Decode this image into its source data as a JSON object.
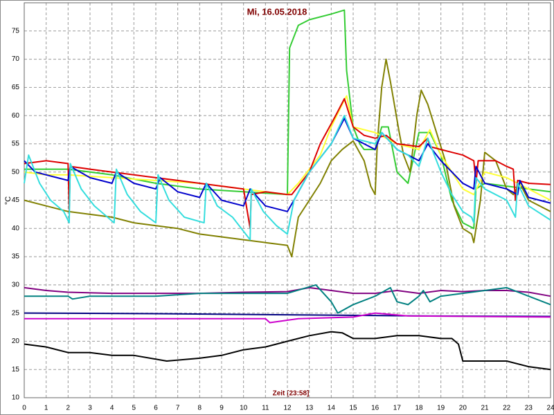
{
  "chart_data": {
    "type": "line",
    "title": "Mi, 16.05.2018",
    "x_label": "Zeit [23:58]",
    "y_label": "°C",
    "xlim": [
      0,
      24
    ],
    "xticks": [
      0,
      1,
      2,
      3,
      4,
      5,
      6,
      7,
      8,
      9,
      10,
      11,
      12,
      13,
      14,
      15,
      16,
      17,
      18,
      19,
      20,
      21,
      22,
      23,
      24
    ],
    "ylim": [
      10,
      80
    ],
    "yticks": [
      10,
      15,
      20,
      25,
      30,
      35,
      40,
      45,
      50,
      55,
      60,
      65,
      70,
      75
    ],
    "grid": true,
    "series": [
      {
        "color": "#33cc33",
        "x": [
          0,
          2,
          4,
          6,
          8,
          10,
          12,
          12.1,
          12.5,
          13,
          14,
          14.6,
          14.7,
          15,
          15.3,
          15.5,
          16,
          16.3,
          16.6,
          17,
          17.5,
          18,
          18.5,
          19,
          19.5,
          20,
          20.5,
          20.6,
          21,
          22,
          23,
          24
        ],
        "values": [
          50.5,
          50.5,
          49.5,
          48,
          47,
          46.5,
          46,
          72,
          76,
          77,
          78,
          78.7,
          68,
          58,
          55,
          54,
          54,
          58,
          58,
          50,
          48,
          57,
          57,
          53,
          45,
          41,
          40,
          47,
          48,
          47.5,
          47,
          46.5
        ]
      },
      {
        "color": "#808000",
        "x": [
          0,
          1,
          2,
          3,
          4,
          5,
          6,
          7,
          8,
          9,
          10,
          11,
          12,
          12.2,
          12.5,
          13,
          13.5,
          14,
          14.5,
          15,
          15.5,
          15.8,
          16,
          16.1,
          16.3,
          16.5,
          16.7,
          17.1,
          17.3,
          17.6,
          17.9,
          18.1,
          18.4,
          18.8,
          19.2,
          19.6,
          20,
          20.4,
          20.5,
          20.8,
          21,
          21.5,
          22,
          22.3,
          22.6,
          23,
          24
        ],
        "values": [
          45,
          44,
          43,
          42.5,
          42,
          41,
          40.5,
          40,
          39,
          38.5,
          38,
          37.5,
          37,
          35,
          42,
          45,
          48,
          52,
          54,
          55.5,
          52,
          47.5,
          46,
          55,
          65,
          70,
          66,
          57,
          53,
          50,
          60,
          64.5,
          62,
          57,
          52,
          44,
          40,
          39,
          37.5,
          45,
          53.5,
          52,
          47,
          46,
          48,
          45,
          43
        ]
      },
      {
        "color": "#ffff33",
        "x": [
          0,
          1,
          2,
          4,
          6,
          8,
          10,
          12,
          12.5,
          13.5,
          14,
          14.5,
          14.7,
          15,
          16,
          16.5,
          17,
          18,
          18.5,
          19,
          19.5,
          20,
          20.5,
          21,
          22,
          23,
          24
        ],
        "values": [
          50,
          49.5,
          49.5,
          49,
          48.5,
          48,
          47,
          46,
          48,
          53,
          58,
          62,
          63.5,
          58,
          57,
          56,
          55,
          54,
          57.5,
          53,
          50,
          47,
          46,
          50,
          49,
          47,
          45
        ]
      },
      {
        "color": "#dd0000",
        "x": [
          0,
          1,
          2,
          2.05,
          2.1,
          3,
          4,
          5,
          6,
          7,
          8,
          9,
          10,
          10.3,
          10.35,
          11,
          12,
          12.2,
          13,
          13.5,
          14.2,
          14.6,
          15,
          15.5,
          16,
          16.5,
          17,
          18,
          18.4,
          18.5,
          19.5,
          20,
          20.5,
          20.6,
          20.7,
          21.5,
          22,
          22.3,
          22.4,
          22.5,
          23,
          24
        ],
        "values": [
          51.5,
          52,
          51.5,
          43,
          51,
          50.5,
          50,
          49.5,
          49,
          48.5,
          48,
          47.5,
          47,
          40,
          46,
          46.5,
          46,
          46,
          50,
          55,
          60,
          63,
          58,
          56.5,
          56,
          56.5,
          55,
          54.5,
          56,
          54.5,
          53.5,
          53,
          52,
          48,
          52,
          52,
          51,
          50.5,
          45,
          48.5,
          48,
          47.8
        ]
      },
      {
        "color": "#0000cc",
        "x": [
          0,
          0.5,
          1.5,
          2,
          2.1,
          3,
          4,
          4.2,
          5,
          6,
          6.2,
          7,
          8,
          8.3,
          9,
          10,
          10.3,
          11,
          12,
          12.3,
          13,
          14,
          14.6,
          15,
          16,
          16.3,
          17,
          17.5,
          18,
          18.4,
          19,
          19.5,
          20,
          20.5,
          20.6,
          21,
          22,
          22.5,
          22.6,
          23,
          24
        ],
        "values": [
          52,
          50,
          49,
          48.5,
          51,
          49,
          48,
          50,
          48,
          47,
          49,
          46.5,
          45.5,
          48,
          45,
          44,
          47,
          44,
          43,
          45,
          50,
          55,
          59.5,
          56,
          54,
          57,
          54,
          53,
          52,
          55,
          52,
          50,
          48,
          47,
          51,
          48,
          47,
          46,
          48.5,
          45.5,
          44.5
        ]
      },
      {
        "color": "#33dddd",
        "x": [
          0,
          0.2,
          0.7,
          1.2,
          1.8,
          2.05,
          2.1,
          2.6,
          3.2,
          3.8,
          4.1,
          4.2,
          4.7,
          5.3,
          6,
          6.1,
          6.6,
          7.3,
          8.2,
          8.3,
          8.8,
          9.5,
          10.3,
          10.35,
          10.9,
          11.5,
          12,
          12.3,
          13,
          14,
          14.6,
          15,
          16,
          16.3,
          17,
          17.5,
          18,
          18.4,
          19,
          19.5,
          20,
          20.4,
          20.5,
          20.6,
          21,
          22,
          22.4,
          22.5,
          23,
          24
        ],
        "values": [
          48,
          53,
          48,
          45,
          43,
          41,
          51.5,
          47,
          44,
          42,
          41,
          50.5,
          46,
          43,
          41,
          49.5,
          45,
          42,
          41,
          48,
          44,
          42,
          38,
          47,
          43,
          40.5,
          39,
          45,
          50,
          55,
          60,
          56,
          55,
          57,
          54,
          53,
          51,
          56,
          50,
          46,
          43,
          42,
          41,
          49,
          47,
          45,
          42,
          48,
          44,
          41.5
        ]
      },
      {
        "color": "#800080",
        "x": [
          0,
          1,
          2,
          4,
          8,
          10,
          12,
          13,
          14,
          15,
          16,
          17,
          18,
          19,
          20,
          21,
          22,
          23,
          24
        ],
        "values": [
          29.5,
          29,
          28.7,
          28.5,
          28.5,
          28.7,
          28.8,
          29.5,
          29,
          28.5,
          28.5,
          29,
          28.5,
          29,
          28.8,
          29,
          29,
          28.7,
          28
        ]
      },
      {
        "color": "#008080",
        "x": [
          0,
          2,
          2.2,
          3,
          6,
          8,
          12,
          13.3,
          14,
          14.3,
          15,
          16,
          16.7,
          17,
          17.5,
          18,
          18.2,
          18.5,
          19,
          20,
          21,
          22,
          23,
          24
        ],
        "values": [
          28,
          28,
          27.5,
          28,
          28,
          28.5,
          28.5,
          30,
          27,
          25,
          26.5,
          28,
          29.5,
          27,
          26.5,
          28,
          29,
          27,
          28,
          28.5,
          29,
          29.5,
          28,
          26.5
        ]
      },
      {
        "color": "#000080",
        "x": [
          0,
          6,
          12,
          18,
          24
        ],
        "values": [
          25,
          24.9,
          24.7,
          24.5,
          24.4
        ]
      },
      {
        "color": "#cc00cc",
        "x": [
          0,
          11,
          11.2,
          12.5,
          15,
          16,
          17.5,
          24
        ],
        "values": [
          24,
          24,
          23.3,
          24,
          24.3,
          25,
          24.5,
          24.3
        ]
      },
      {
        "color": "#000000",
        "x": [
          0,
          1,
          2,
          3,
          4,
          5,
          6.5,
          8,
          9,
          10,
          11,
          12,
          13,
          14,
          14.5,
          15,
          16,
          17,
          18,
          19,
          19.5,
          19.8,
          20,
          21,
          22,
          23,
          24
        ],
        "values": [
          19.5,
          19,
          18,
          18,
          17.5,
          17.5,
          16.5,
          17,
          17.5,
          18.5,
          19,
          20,
          21,
          21.7,
          21.5,
          20.5,
          20.5,
          21,
          21,
          20.5,
          20.5,
          19.5,
          16.5,
          16.5,
          16.5,
          15.5,
          15
        ]
      }
    ]
  }
}
